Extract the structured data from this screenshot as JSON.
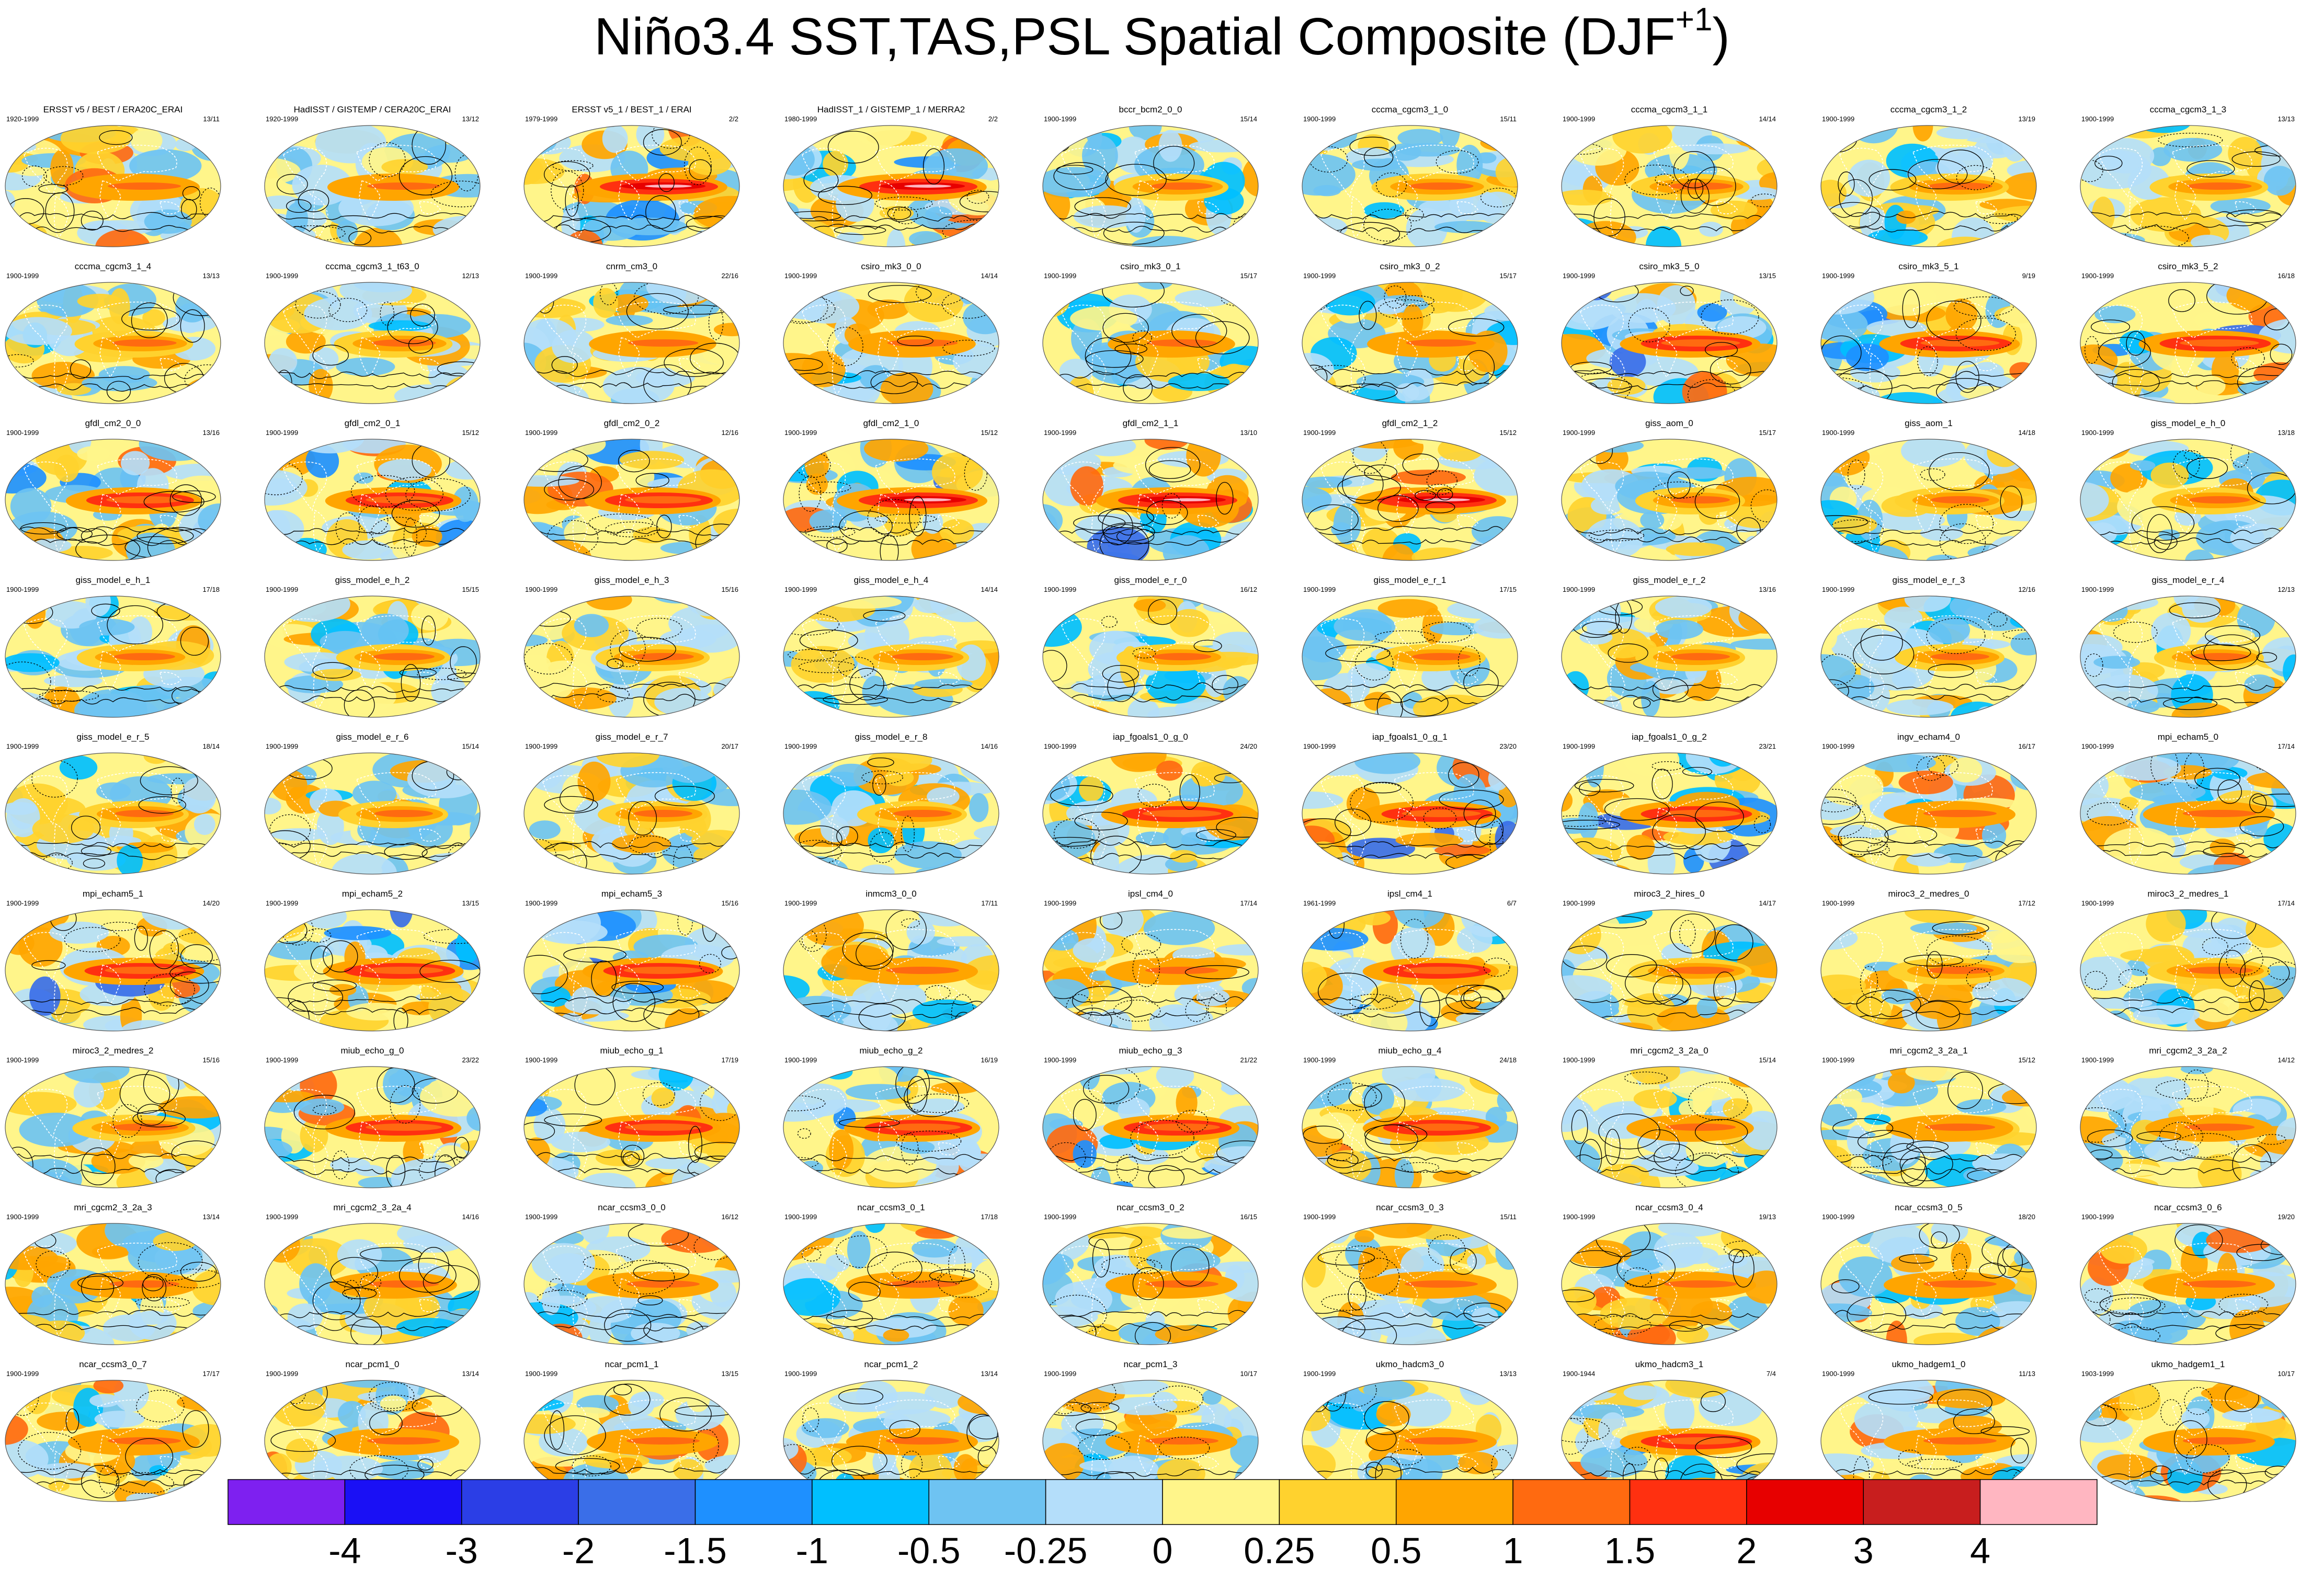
{
  "title": {
    "main": "Niño3.4 SST,TAS,PSL Spatial Composite (DJF",
    "sup": "+1",
    "close": ")"
  },
  "colors": {
    "land_mask": "#ffffff",
    "contour": "#000000",
    "ocean_dash": "#ffffff"
  },
  "panels": [
    {
      "name": "ERSST v5 / BEST / ERA20C_ERAI",
      "period": "1920-1999",
      "count": "13/11",
      "amp": 1.0
    },
    {
      "name": "HadISST / GISTEMP / CERA20C_ERAI",
      "period": "1920-1999",
      "count": "13/12",
      "amp": 1.0
    },
    {
      "name": "ERSST v5_1 / BEST_1 / ERAI",
      "period": "1979-1999",
      "count": "2/2",
      "amp": 1.4
    },
    {
      "name": "HadISST_1 / GISTEMP_1 / MERRA2",
      "period": "1980-1999",
      "count": "2/2",
      "amp": 1.4
    },
    {
      "name": "bccr_bcm2_0_0",
      "period": "1900-1999",
      "count": "15/14",
      "amp": 0.6
    },
    {
      "name": "cccma_cgcm3_1_0",
      "period": "1900-1999",
      "count": "15/11",
      "amp": 0.7
    },
    {
      "name": "cccma_cgcm3_1_1",
      "period": "1900-1999",
      "count": "14/14",
      "amp": 0.7
    },
    {
      "name": "cccma_cgcm3_1_2",
      "period": "1900-1999",
      "count": "13/19",
      "amp": 0.7
    },
    {
      "name": "cccma_cgcm3_1_3",
      "period": "1900-1999",
      "count": "13/13",
      "amp": 0.7
    },
    {
      "name": "cccma_cgcm3_1_4",
      "period": "1900-1999",
      "count": "13/13",
      "amp": 0.7
    },
    {
      "name": "cccma_cgcm3_1_t63_0",
      "period": "1900-1999",
      "count": "12/13",
      "amp": 0.7
    },
    {
      "name": "cnrm_cm3_0",
      "period": "1900-1999",
      "count": "22/16",
      "amp": 0.9
    },
    {
      "name": "csiro_mk3_0_0",
      "period": "1900-1999",
      "count": "14/14",
      "amp": 0.9
    },
    {
      "name": "csiro_mk3_0_1",
      "period": "1900-1999",
      "count": "15/17",
      "amp": 0.9
    },
    {
      "name": "csiro_mk3_0_2",
      "period": "1900-1999",
      "count": "15/17",
      "amp": 0.9
    },
    {
      "name": "csiro_mk3_5_0",
      "period": "1900-1999",
      "count": "13/15",
      "amp": 1.2
    },
    {
      "name": "csiro_mk3_5_1",
      "period": "1900-1999",
      "count": "9/19",
      "amp": 1.2
    },
    {
      "name": "csiro_mk3_5_2",
      "period": "1900-1999",
      "count": "16/18",
      "amp": 1.2
    },
    {
      "name": "gfdl_cm2_0_0",
      "period": "1900-1999",
      "count": "13/16",
      "amp": 1.1
    },
    {
      "name": "gfdl_cm2_0_1",
      "period": "1900-1999",
      "count": "15/12",
      "amp": 1.1
    },
    {
      "name": "gfdl_cm2_0_2",
      "period": "1900-1999",
      "count": "12/16",
      "amp": 1.1
    },
    {
      "name": "gfdl_cm2_1_0",
      "period": "1900-1999",
      "count": "15/12",
      "amp": 1.5
    },
    {
      "name": "gfdl_cm2_1_1",
      "period": "1900-1999",
      "count": "13/10",
      "amp": 1.5
    },
    {
      "name": "gfdl_cm2_1_2",
      "period": "1900-1999",
      "count": "15/12",
      "amp": 1.5
    },
    {
      "name": "giss_aom_0",
      "period": "1900-1999",
      "count": "15/17",
      "amp": 0.5
    },
    {
      "name": "giss_aom_1",
      "period": "1900-1999",
      "count": "14/18",
      "amp": 0.5
    },
    {
      "name": "giss_model_e_h_0",
      "period": "1900-1999",
      "count": "13/18",
      "amp": 0.6
    },
    {
      "name": "giss_model_e_h_1",
      "period": "1900-1999",
      "count": "17/18",
      "amp": 0.6
    },
    {
      "name": "giss_model_e_h_2",
      "period": "1900-1999",
      "count": "15/15",
      "amp": 0.6
    },
    {
      "name": "giss_model_e_h_3",
      "period": "1900-1999",
      "count": "15/16",
      "amp": 0.6
    },
    {
      "name": "giss_model_e_h_4",
      "period": "1900-1999",
      "count": "14/14",
      "amp": 0.6
    },
    {
      "name": "giss_model_e_r_0",
      "period": "1900-1999",
      "count": "16/12",
      "amp": 0.5
    },
    {
      "name": "giss_model_e_r_1",
      "period": "1900-1999",
      "count": "17/15",
      "amp": 0.5
    },
    {
      "name": "giss_model_e_r_2",
      "period": "1900-1999",
      "count": "13/16",
      "amp": 0.5
    },
    {
      "name": "giss_model_e_r_3",
      "period": "1900-1999",
      "count": "12/16",
      "amp": 0.5
    },
    {
      "name": "giss_model_e_r_4",
      "period": "1900-1999",
      "count": "12/13",
      "amp": 0.5
    },
    {
      "name": "giss_model_e_r_5",
      "period": "1900-1999",
      "count": "18/14",
      "amp": 0.5
    },
    {
      "name": "giss_model_e_r_6",
      "period": "1900-1999",
      "count": "15/14",
      "amp": 0.5
    },
    {
      "name": "giss_model_e_r_7",
      "period": "1900-1999",
      "count": "20/17",
      "amp": 0.5
    },
    {
      "name": "giss_model_e_r_8",
      "period": "1900-1999",
      "count": "14/16",
      "amp": 0.5
    },
    {
      "name": "iap_fgoals1_0_g_0",
      "period": "1900-1999",
      "count": "24/20",
      "amp": 1.2
    },
    {
      "name": "iap_fgoals1_0_g_1",
      "period": "1900-1999",
      "count": "23/20",
      "amp": 1.2
    },
    {
      "name": "iap_fgoals1_0_g_2",
      "period": "1900-1999",
      "count": "23/21",
      "amp": 1.2
    },
    {
      "name": "ingv_echam4_0",
      "period": "1900-1999",
      "count": "16/17",
      "amp": 1.0
    },
    {
      "name": "mpi_echam5_0",
      "period": "1900-1999",
      "count": "17/14",
      "amp": 1.0
    },
    {
      "name": "mpi_echam5_1",
      "period": "1900-1999",
      "count": "14/20",
      "amp": 1.2
    },
    {
      "name": "mpi_echam5_2",
      "period": "1900-1999",
      "count": "13/15",
      "amp": 1.2
    },
    {
      "name": "mpi_echam5_3",
      "period": "1900-1999",
      "count": "15/16",
      "amp": 1.2
    },
    {
      "name": "inmcm3_0_0",
      "period": "1900-1999",
      "count": "17/11",
      "amp": 1.0
    },
    {
      "name": "ipsl_cm4_0",
      "period": "1900-1999",
      "count": "17/14",
      "amp": 1.0
    },
    {
      "name": "ipsl_cm4_1",
      "period": "1961-1999",
      "count": "6/7",
      "amp": 1.1
    },
    {
      "name": "miroc3_2_hires_0",
      "period": "1900-1999",
      "count": "14/17",
      "amp": 0.8
    },
    {
      "name": "miroc3_2_medres_0",
      "period": "1900-1999",
      "count": "17/12",
      "amp": 0.8
    },
    {
      "name": "miroc3_2_medres_1",
      "period": "1900-1999",
      "count": "17/14",
      "amp": 0.8
    },
    {
      "name": "miroc3_2_medres_2",
      "period": "1900-1999",
      "count": "15/16",
      "amp": 0.8
    },
    {
      "name": "miub_echo_g_0",
      "period": "1900-1999",
      "count": "23/22",
      "amp": 1.1
    },
    {
      "name": "miub_echo_g_1",
      "period": "1900-1999",
      "count": "17/19",
      "amp": 1.1
    },
    {
      "name": "miub_echo_g_2",
      "period": "1900-1999",
      "count": "16/19",
      "amp": 1.1
    },
    {
      "name": "miub_echo_g_3",
      "period": "1900-1999",
      "count": "21/22",
      "amp": 1.1
    },
    {
      "name": "miub_echo_g_4",
      "period": "1900-1999",
      "count": "24/18",
      "amp": 1.1
    },
    {
      "name": "mri_cgcm2_3_2a_0",
      "period": "1900-1999",
      "count": "15/14",
      "amp": 0.9
    },
    {
      "name": "mri_cgcm2_3_2a_1",
      "period": "1900-1999",
      "count": "15/12",
      "amp": 0.9
    },
    {
      "name": "mri_cgcm2_3_2a_2",
      "period": "1900-1999",
      "count": "14/12",
      "amp": 0.9
    },
    {
      "name": "mri_cgcm2_3_2a_3",
      "period": "1900-1999",
      "count": "13/14",
      "amp": 0.9
    },
    {
      "name": "mri_cgcm2_3_2a_4",
      "period": "1900-1999",
      "count": "14/16",
      "amp": 0.9
    },
    {
      "name": "ncar_ccsm3_0_0",
      "period": "1900-1999",
      "count": "16/12",
      "amp": 1.0
    },
    {
      "name": "ncar_ccsm3_0_1",
      "period": "1900-1999",
      "count": "17/18",
      "amp": 1.0
    },
    {
      "name": "ncar_ccsm3_0_2",
      "period": "1900-1999",
      "count": "16/15",
      "amp": 1.0
    },
    {
      "name": "ncar_ccsm3_0_3",
      "period": "1900-1999",
      "count": "15/11",
      "amp": 1.0
    },
    {
      "name": "ncar_ccsm3_0_4",
      "period": "1900-1999",
      "count": "19/13",
      "amp": 1.0
    },
    {
      "name": "ncar_ccsm3_0_5",
      "period": "1900-1999",
      "count": "18/20",
      "amp": 1.0
    },
    {
      "name": "ncar_ccsm3_0_6",
      "period": "1900-1999",
      "count": "19/20",
      "amp": 1.0
    },
    {
      "name": "ncar_ccsm3_0_7",
      "period": "1900-1999",
      "count": "17/17",
      "amp": 1.0
    },
    {
      "name": "ncar_pcm1_0",
      "period": "1900-1999",
      "count": "13/14",
      "amp": 1.0
    },
    {
      "name": "ncar_pcm1_1",
      "period": "1900-1999",
      "count": "13/15",
      "amp": 1.0
    },
    {
      "name": "ncar_pcm1_2",
      "period": "1900-1999",
      "count": "13/14",
      "amp": 1.0
    },
    {
      "name": "ncar_pcm1_3",
      "period": "1900-1999",
      "count": "10/17",
      "amp": 1.0
    },
    {
      "name": "ukmo_hadcm3_0",
      "period": "1900-1999",
      "count": "13/13",
      "amp": 1.0
    },
    {
      "name": "ukmo_hadcm3_1",
      "period": "1900-1944",
      "count": "7/4",
      "amp": 1.2
    },
    {
      "name": "ukmo_hadgem1_0",
      "period": "1900-1999",
      "count": "11/13",
      "amp": 1.0
    },
    {
      "name": "ukmo_hadgem1_1",
      "period": "1903-1999",
      "count": "10/17",
      "amp": 1.0
    }
  ],
  "colorbar": {
    "colors": [
      "#7e20f0",
      "#1a10f5",
      "#2b3ee6",
      "#3a6ee8",
      "#1e90ff",
      "#00bfff",
      "#6ec3f2",
      "#b4defa",
      "#fff58a",
      "#ffd22e",
      "#ffa500",
      "#ff6a10",
      "#ff3010",
      "#e70000",
      "#c81e1e",
      "#ffb6c1"
    ],
    "tick_labels": [
      "-4",
      "-3",
      "-2",
      "-1.5",
      "-1",
      "-0.5",
      "-0.25",
      "0",
      "0.25",
      "0.5",
      "1",
      "1.5",
      "2",
      "3",
      "4"
    ]
  }
}
